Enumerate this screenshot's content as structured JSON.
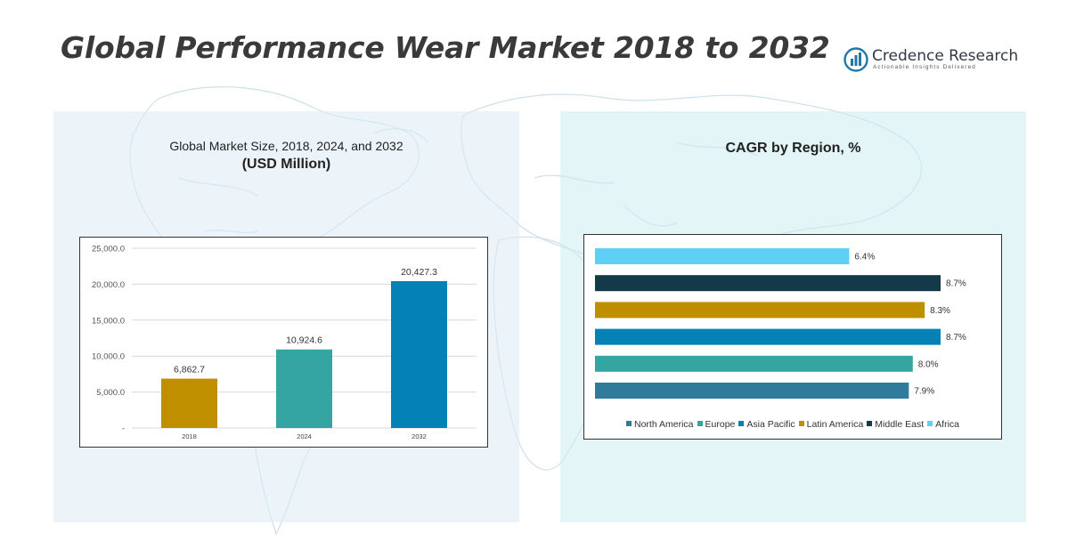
{
  "page": {
    "title": "Global Performance Wear Market 2018 to 2032"
  },
  "logo": {
    "name": "Credence Research",
    "tagline": "Actionable Insights Delivered",
    "icon": "credence-logo-icon",
    "color": "#1f78a8"
  },
  "left_panel": {
    "title": "Global Market Size, 2018, 2024, and 2032",
    "subtitle": "(USD Million)"
  },
  "right_panel": {
    "title": "CAGR by Region, %"
  },
  "chart_data": [
    {
      "type": "bar",
      "title": "Global Market Size, 2018, 2024, and 2032",
      "subtitle": "(USD Million)",
      "categories": [
        "2018",
        "2024",
        "2032"
      ],
      "values": [
        6862.7,
        10924.6,
        20427.3
      ],
      "value_labels": [
        "6,862.7",
        "10,924.6",
        "20,427.3"
      ],
      "colors": [
        "#bf8f00",
        "#35a5a2",
        "#0582b5"
      ],
      "ylim": [
        0,
        25000
      ],
      "y_ticks": [
        0,
        5000,
        10000,
        15000,
        20000,
        25000
      ],
      "y_tick_labels": [
        "-",
        "5,000.0",
        "10,000.0",
        "15,000.0",
        "20,000.0",
        "25,000.0"
      ],
      "grid": true,
      "legend": "none"
    },
    {
      "type": "bar",
      "orientation": "horizontal",
      "title": "CAGR by Region, %",
      "categories": [
        "North America",
        "Europe",
        "Asia Pacific",
        "Latin America",
        "Middle East",
        "Africa"
      ],
      "values": [
        7.9,
        8.0,
        8.7,
        8.3,
        8.7,
        6.4
      ],
      "value_labels": [
        "7.9%",
        "8.0%",
        "8.7%",
        "8.3%",
        "8.7%",
        "6.4%"
      ],
      "colors": [
        "#2f7b9c",
        "#35a5a2",
        "#0582b5",
        "#bf8f00",
        "#143a4a",
        "#5ecff5"
      ],
      "xlim": [
        0,
        8.7
      ],
      "grid": false,
      "legend": "bottom"
    }
  ]
}
